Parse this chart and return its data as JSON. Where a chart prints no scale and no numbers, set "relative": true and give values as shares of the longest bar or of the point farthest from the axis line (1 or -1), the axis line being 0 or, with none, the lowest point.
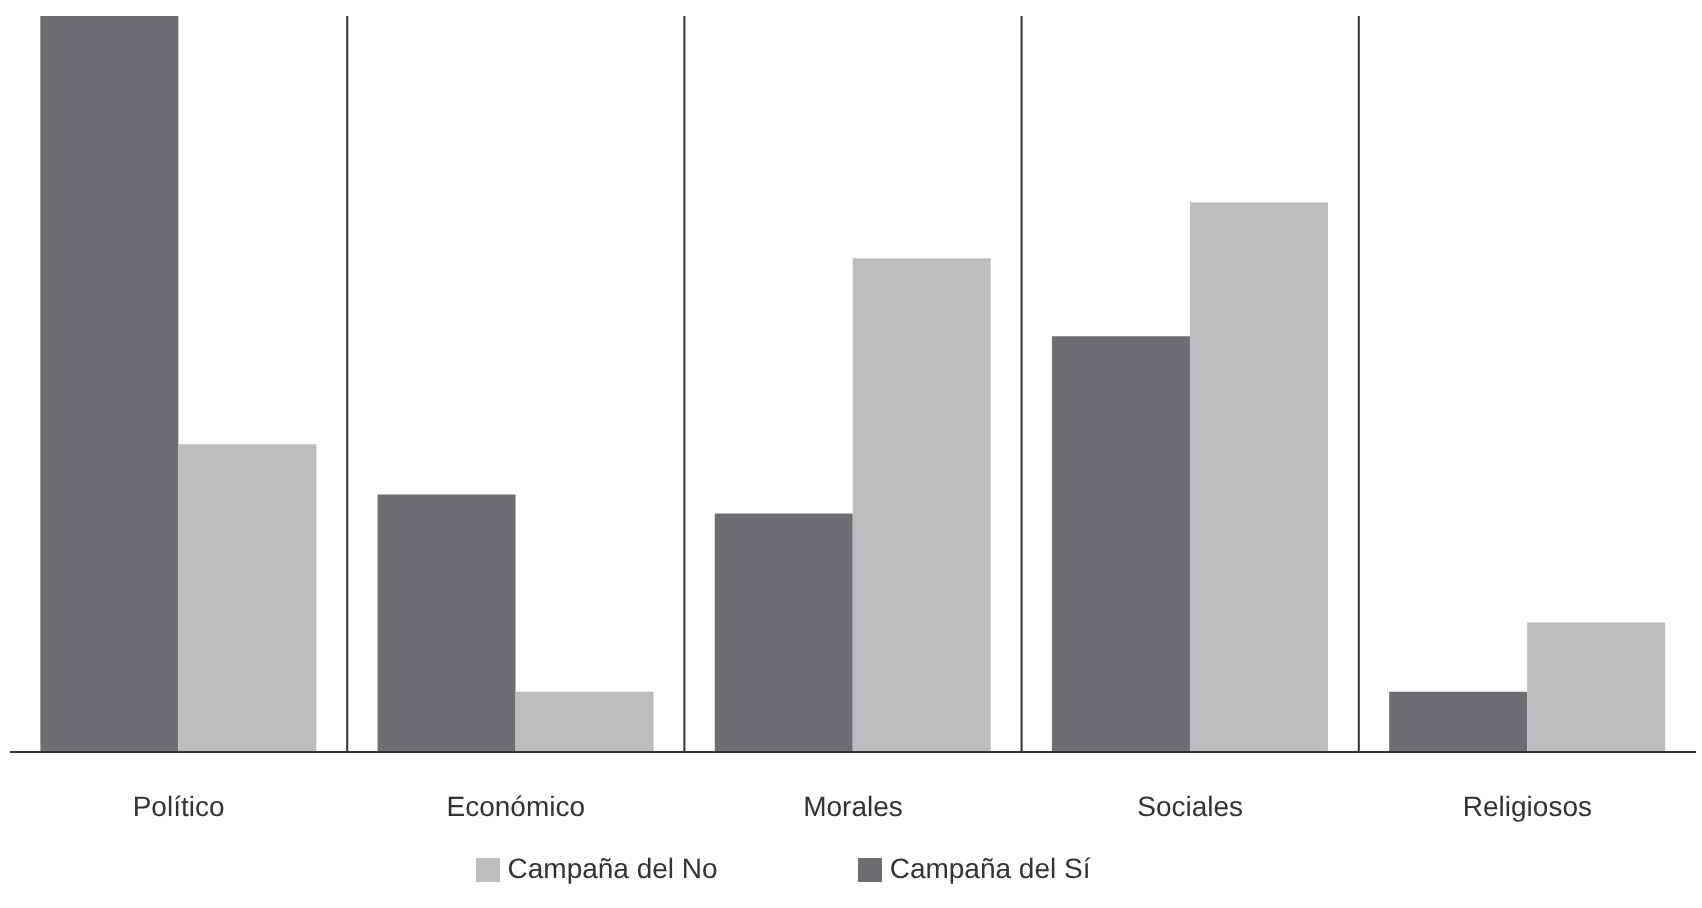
{
  "chart_data": {
    "type": "bar",
    "relative": true,
    "categories": [
      "Político",
      "Económico",
      "Morales",
      "Sociales",
      "Religiosos"
    ],
    "series": [
      {
        "name": "Campaña del Sí",
        "color": "#6d6e71",
        "values": [
          1,
          0.35,
          0.324,
          0.565,
          0.082
        ]
      },
      {
        "name": "Campaña del No",
        "color": "#bcbdbf",
        "values": [
          0.418,
          0.082,
          0.671,
          0.747,
          0.176
        ]
      }
    ],
    "grid": "x",
    "legend": "bottom"
  }
}
